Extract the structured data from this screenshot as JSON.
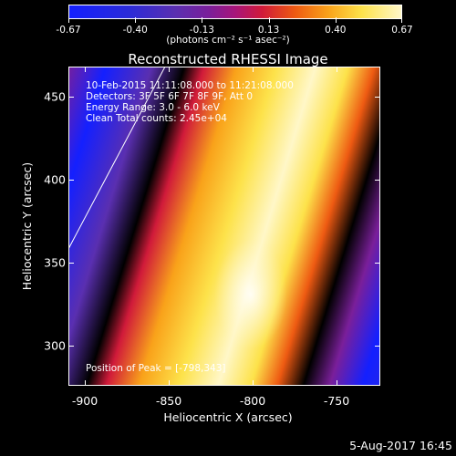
{
  "colorbar": {
    "tick_labels": [
      "-0.67",
      "-0.40",
      "-0.13",
      "0.13",
      "0.40",
      "0.67"
    ],
    "units": "(photons cm⁻² s⁻¹ asec⁻²)"
  },
  "title": "Reconstructed RHESSI Image",
  "annotations": {
    "time_range": "10-Feb-2015 11:11:08.000 to 11:21:08.000",
    "detectors": "Detectors: 3F 5F 6F 7F 8F 9F, Att 0",
    "energy": "Energy Range: 3.0 - 6.0 keV",
    "clean": "Clean    Total counts: 2.45e+04",
    "peak": "Position of Peak = [-798,343]"
  },
  "x_axis": {
    "title": "Heliocentric X (arcsec)",
    "tick_labels": [
      "-900",
      "-850",
      "-800",
      "-750"
    ]
  },
  "y_axis": {
    "title": "Heliocentric Y (arcsec)",
    "tick_labels": [
      "300",
      "350",
      "400",
      "450"
    ]
  },
  "footer": "5-Aug-2017 16:45",
  "colors": {
    "background": "#000000",
    "low": "#1420ff",
    "high": "#fff7c8"
  }
}
